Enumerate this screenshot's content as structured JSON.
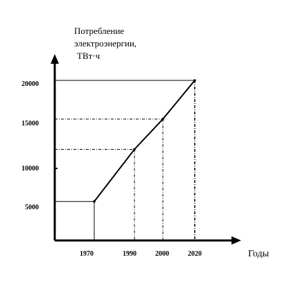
{
  "chart_data": {
    "type": "line",
    "ylabel_lines": [
      "Потребление",
      "электроэнергии,",
      "ТВт·ч"
    ],
    "xlabel": "Годы",
    "x": [
      1970,
      1990,
      2000,
      2020
    ],
    "y": [
      5600,
      11800,
      15400,
      20000
    ],
    "x_ticks": [
      "1970",
      "1990",
      "2000",
      "2020"
    ],
    "y_ticks": [
      "5000",
      "10000",
      "15000",
      "20000"
    ],
    "grid": false
  }
}
